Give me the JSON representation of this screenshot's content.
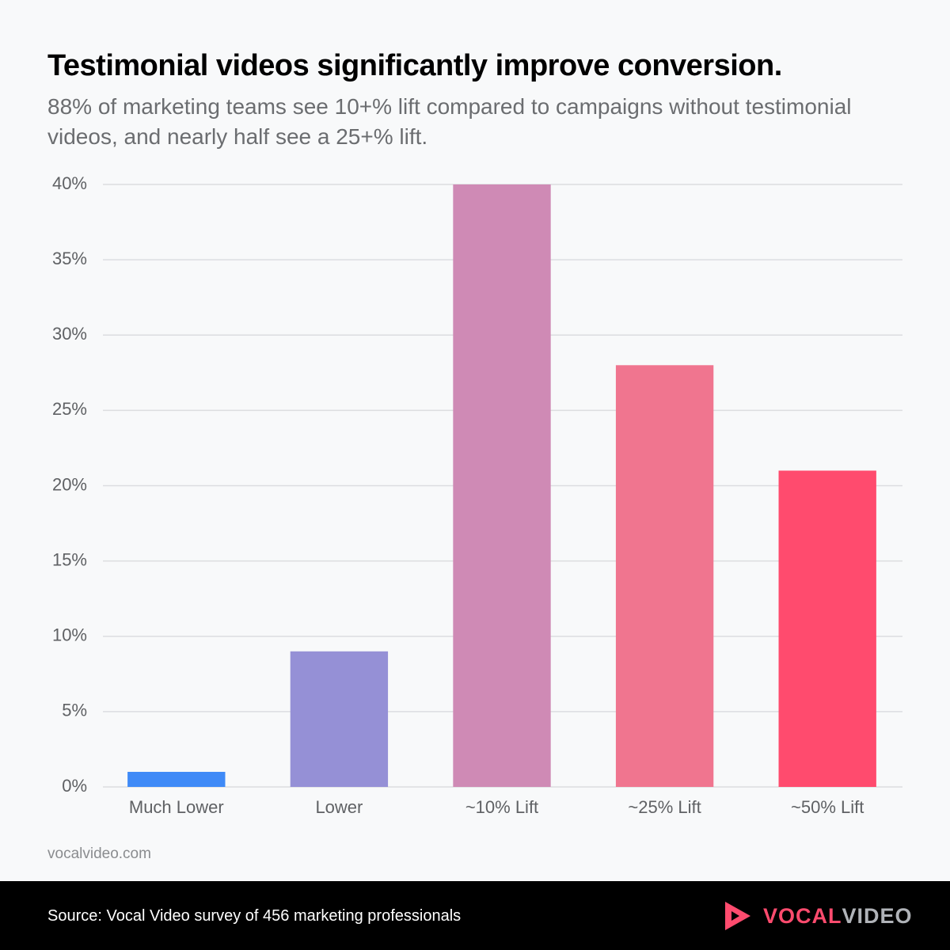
{
  "chart_data": {
    "type": "bar",
    "title": "Testimonial videos significantly improve conversion.",
    "subtitle": "88% of marketing teams see 10+% lift compared to campaigns without testimonial videos, and nearly half see a 25+% lift.",
    "categories": [
      "Much Lower",
      "Lower",
      "~10% Lift",
      "~25% Lift",
      "~50% Lift"
    ],
    "values": [
      1,
      9,
      40,
      28,
      21
    ],
    "colors": [
      "#3f8af7",
      "#9590d6",
      "#cf8ab5",
      "#f0758f",
      "#ff4b6e"
    ],
    "ylim": [
      0,
      40
    ],
    "yticks": [
      {
        "value": 0,
        "label": "0%"
      },
      {
        "value": 5,
        "label": "5%"
      },
      {
        "value": 10,
        "label": "10%"
      },
      {
        "value": 15,
        "label": "15%"
      },
      {
        "value": 20,
        "label": "20%"
      },
      {
        "value": 25,
        "label": "25%"
      },
      {
        "value": 30,
        "label": "30%"
      },
      {
        "value": 35,
        "label": "35%"
      },
      {
        "value": 40,
        "label": "40%"
      }
    ],
    "grid": true,
    "annotation": "vocalvideo.com"
  },
  "footer": {
    "source": "Source: Vocal Video survey of 456 marketing professionals",
    "logo": [
      "VOCAL",
      "VIDEO"
    ]
  }
}
